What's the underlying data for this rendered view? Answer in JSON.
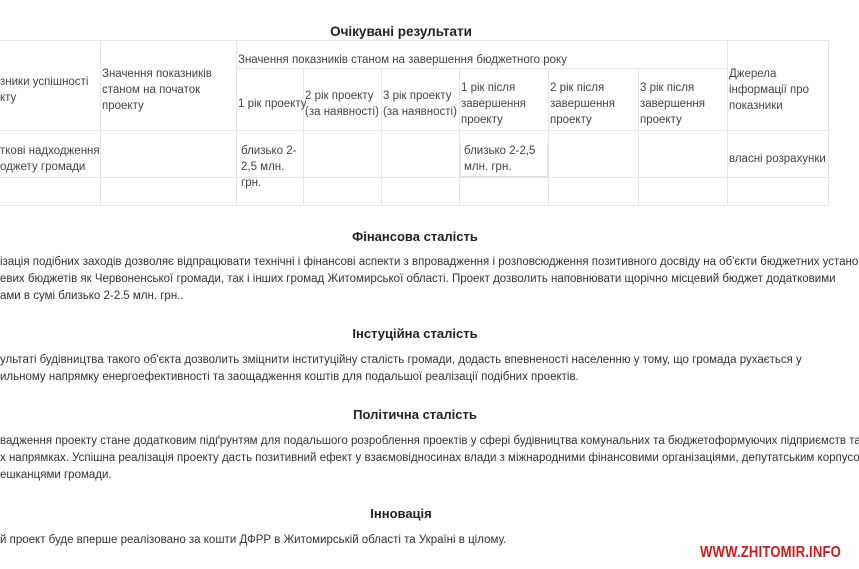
{
  "results_title": "Очікувані результати",
  "table": {
    "header": {
      "indicators": [
        "зники успішності",
        "кту"
      ],
      "start_value": "Значення показників станом на початок проекту",
      "end_value_group": "Значення показників станом на завершення бюджетного року",
      "year1": "1 рік проекту",
      "year2": "2 рік проекту (за наявності)",
      "year3": "3 рік проекту (за наявності)",
      "after1": "1 рік після завершення проекту",
      "after2": "2 рік після завершення проекту",
      "after3": "3 рік після завершення проекту",
      "sources": "Джерела інформації про показники"
    },
    "row1": {
      "indicator": [
        "ткові надходження",
        "оджету громади"
      ],
      "year1": "близько 2-2,5 млн. грн.",
      "after1": "близько 2-2,5 млн. грн.",
      "sources": "власні розрахунки"
    }
  },
  "sections": [
    {
      "title": "Фінансова сталість",
      "lines": [
        "ізація подібних заходів дозволяє відпрацювати технічні і фінансові аспекти з впровадження і розповсюдження позитивного досвіду на об'єкти бюджетних установ,",
        "евих бюджетів як Червоненської громади, так і інших громад Житомирської області. Проект дозволить наповнювати щорічно місцевий бюджет додатковими",
        "ами в сумі близько 2-2.5 млн. грн.."
      ]
    },
    {
      "title": "Інстуційна сталість",
      "lines": [
        "ультаті будівництва такого об'єкта дозволить зміцнити інституційну сталість громади, додасть впевненості населенню у тому, що громада рухається у",
        "ильному напрямку енергоефективності та заощадження коштів для подальшої реалізації подібних проектів."
      ]
    },
    {
      "title": "Політична сталість",
      "lines": [
        "вадження проекту стане додатковим підґрунтям для подальшого розроблення проектів у сфері будівництва комунальних та бюджетоформуючих підприємств та",
        "х напрямках. Успішна реалізація проекту дасть позитивний ефект у взаємовідносинах влади з міжнародними фінансовими організаціями, депутатським корпусом",
        "ешканцями громади."
      ]
    },
    {
      "title": "Інновація",
      "lines": [
        "й проект буде вперше реалізовано за кошти ДФРР в Житомирській області та Україні в цілому."
      ]
    }
  ],
  "watermark": "WWW.ZHITOMIR.INFO",
  "colors": {
    "watermark": "#c8201e",
    "grid": "#e6e6e6"
  }
}
